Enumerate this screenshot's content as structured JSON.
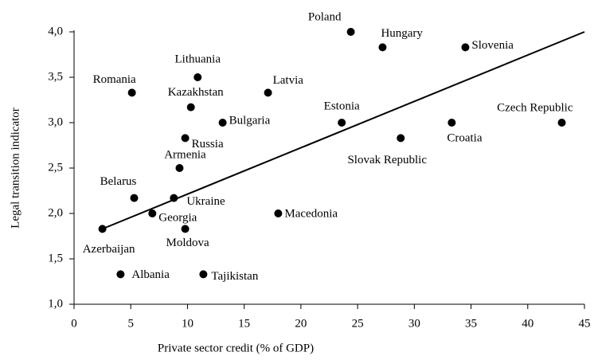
{
  "chart_data": {
    "type": "scatter",
    "xlabel": "Private sector credit (% of GDP)",
    "ylabel": "Legal transition indicator",
    "names": [
      "Poland",
      "Hungary",
      "Slovenia",
      "Lithuania",
      "Romania",
      "Latvia",
      "Kazakhstan",
      "Bulgaria",
      "Estonia",
      "Croatia",
      "Czech Republic",
      "Russia",
      "Slovak Republic",
      "Armenia",
      "Belarus",
      "Ukraine",
      "Georgia",
      "Macedonia",
      "Azerbaijan",
      "Moldova",
      "Albania",
      "Tajikistan"
    ],
    "x": [
      24.4,
      27.2,
      34.5,
      10.9,
      5.1,
      17.1,
      10.3,
      13.1,
      23.6,
      33.3,
      43.0,
      9.8,
      28.8,
      9.3,
      5.3,
      8.8,
      6.9,
      18.0,
      2.5,
      9.8,
      4.1,
      11.4
    ],
    "values": [
      4.0,
      3.83,
      3.83,
      3.5,
      3.33,
      3.33,
      3.17,
      3.0,
      3.0,
      3.0,
      3.0,
      2.83,
      2.83,
      2.5,
      2.17,
      2.17,
      2.0,
      2.0,
      1.83,
      1.83,
      1.33,
      1.33
    ],
    "color": "#000000",
    "trendline": {
      "x": [
        2.5,
        45
      ],
      "y": [
        1.83,
        4.0
      ]
    },
    "xlim": [
      0,
      45
    ],
    "xticks": [
      0,
      5,
      10,
      15,
      20,
      25,
      30,
      35,
      40,
      45
    ],
    "ylim": [
      1.0,
      4.0
    ],
    "yticks": [
      {
        "value": 1.0,
        "label": "1,0"
      },
      {
        "value": 1.5,
        "label": "1,5"
      },
      {
        "value": 2.0,
        "label": "2,0"
      },
      {
        "value": 2.5,
        "label": "2,5"
      },
      {
        "value": 3.0,
        "label": "3,0"
      },
      {
        "value": 3.5,
        "label": "3,5"
      },
      {
        "value": 4.0,
        "label": "4,0"
      }
    ],
    "grid": false
  }
}
